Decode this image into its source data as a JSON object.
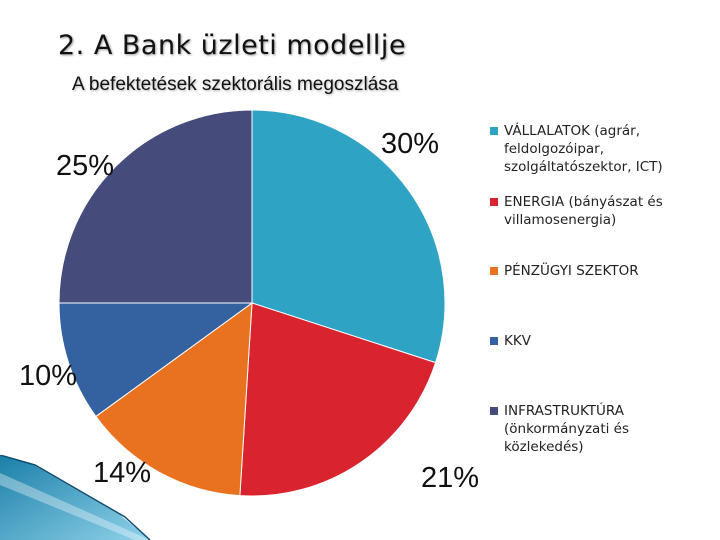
{
  "title": "2. A Bank üzleti modellje",
  "subtitle": "A befektetések szektorális megoszlása",
  "chart_data": {
    "type": "pie",
    "slices": [
      {
        "label": "VÁLLALATOK (agrár,\nfeldolgozóipar,\nszolgáltatószektor, ICT)",
        "value": 30,
        "data_label": "30%",
        "color": "#2ea3c4"
      },
      {
        "label": "ENERGIA (bányászat és\nvillamosenergia)",
        "value": 21,
        "data_label": "21%",
        "color": "#d9232e"
      },
      {
        "label": "PÉNZÜGYI SZEKTOR",
        "value": 14,
        "data_label": "14%",
        "color": "#e8721f"
      },
      {
        "label": "KKV",
        "value": 10,
        "data_label": "10%",
        "color": "#3461a0"
      },
      {
        "label": "INFRASTRUKTÚRA\n(önkormányzati és\nközlekedés)",
        "value": 25,
        "data_label": "25%",
        "color": "#454b7a"
      }
    ],
    "start_angle": "12 o'clock",
    "direction": "clockwise",
    "legend_position": "right"
  }
}
